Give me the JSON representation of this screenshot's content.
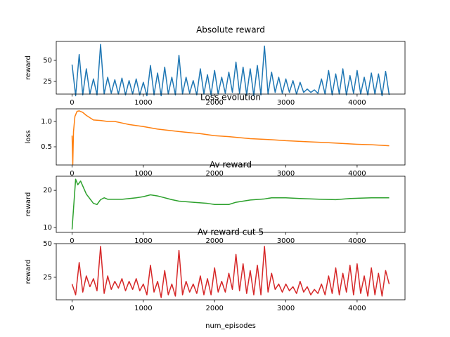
{
  "chart_data": [
    {
      "type": "line",
      "title": "Absolute reward",
      "ylabel": "reward",
      "color": "#1f77b4",
      "x": [
        0,
        50,
        100,
        150,
        200,
        250,
        300,
        350,
        400,
        450,
        500,
        550,
        600,
        650,
        700,
        750,
        800,
        850,
        900,
        950,
        1000,
        1050,
        1100,
        1150,
        1200,
        1250,
        1300,
        1350,
        1400,
        1450,
        1500,
        1550,
        1600,
        1650,
        1700,
        1750,
        1800,
        1850,
        1900,
        1950,
        2000,
        2050,
        2100,
        2150,
        2200,
        2250,
        2300,
        2350,
        2400,
        2450,
        2500,
        2550,
        2600,
        2650,
        2700,
        2750,
        2800,
        2850,
        2900,
        2950,
        3000,
        3050,
        3100,
        3150,
        3200,
        3250,
        3300,
        3350,
        3400,
        3450,
        3500,
        3550,
        3600,
        3650,
        3700,
        3750,
        3800,
        3850,
        3900,
        3950,
        4000,
        4050,
        4100,
        4150,
        4200,
        4250,
        4300,
        4350,
        4400,
        4450
      ],
      "values": [
        45,
        8,
        57,
        9,
        40,
        10,
        28,
        9,
        69,
        10,
        30,
        11,
        27,
        10,
        29,
        9,
        26,
        10,
        28,
        9,
        24,
        8,
        44,
        9,
        35,
        8,
        42,
        10,
        30,
        9,
        56,
        10,
        30,
        11,
        26,
        9,
        40,
        10,
        33,
        9,
        38,
        10,
        30,
        11,
        36,
        12,
        48,
        11,
        42,
        9,
        40,
        8,
        44,
        9,
        67,
        10,
        36,
        12,
        30,
        11,
        28,
        12,
        26,
        10,
        24,
        12,
        16,
        12,
        15,
        11,
        28,
        10,
        38,
        9,
        34,
        10,
        40,
        9,
        32,
        11,
        38,
        10,
        30,
        9,
        35,
        10,
        34,
        8,
        37,
        9
      ],
      "xlim": [
        -222,
        4672
      ],
      "ylim": [
        10,
        72.5
      ],
      "xticks": [
        0,
        1000,
        2000,
        3000,
        4000
      ],
      "yticks": [
        25,
        50
      ]
    },
    {
      "type": "line",
      "title": "Loss evolution",
      "ylabel": "loss",
      "color": "#ff7f0e",
      "x": [
        0,
        10,
        20,
        40,
        70,
        100,
        150,
        200,
        300,
        400,
        500,
        600,
        700,
        800,
        1000,
        1200,
        1500,
        1800,
        2000,
        2200,
        2500,
        2800,
        3000,
        3300,
        3600,
        4000,
        4200,
        4450
      ],
      "values": [
        0.72,
        0.15,
        0.8,
        1.1,
        1.2,
        1.21,
        1.18,
        1.12,
        1.03,
        1.02,
        1.0,
        1.0,
        0.97,
        0.94,
        0.9,
        0.85,
        0.8,
        0.76,
        0.72,
        0.7,
        0.66,
        0.64,
        0.62,
        0.6,
        0.58,
        0.55,
        0.54,
        0.52
      ],
      "xlim": [
        -222,
        4672
      ],
      "ylim": [
        0.14,
        1.25
      ],
      "xticks": [
        0,
        1000,
        2000,
        3000,
        4000
      ],
      "yticks": [
        0.5,
        {
          "value": 1,
          "label": "1.0"
        }
      ]
    },
    {
      "type": "line",
      "title": "Av reward",
      "ylabel": "reward",
      "color": "#2ca02c",
      "x": [
        0,
        20,
        50,
        80,
        120,
        200,
        300,
        350,
        400,
        450,
        500,
        700,
        900,
        1000,
        1100,
        1200,
        1400,
        1500,
        1700,
        1900,
        2000,
        2200,
        2300,
        2500,
        2700,
        2800,
        3000,
        3200,
        3500,
        3700,
        3900,
        4200,
        4450
      ],
      "values": [
        9.5,
        15,
        23,
        21.5,
        22.5,
        19,
        16.5,
        16.2,
        17.5,
        18,
        17.6,
        17.6,
        18,
        18.3,
        18.8,
        18.5,
        17.5,
        17.1,
        16.8,
        16.5,
        16.2,
        16.2,
        16.8,
        17.4,
        17.7,
        18,
        18,
        17.8,
        17.6,
        17.5,
        17.8,
        18,
        18
      ],
      "xlim": [
        -222,
        4672
      ],
      "ylim": [
        8.7,
        23.8
      ],
      "xticks": [
        0,
        1000,
        2000,
        3000,
        4000
      ],
      "yticks": [
        10,
        20
      ]
    },
    {
      "type": "line",
      "title": "Av reward cut 5",
      "ylabel": "reward",
      "xlabel": "num_episodes",
      "color": "#d62728",
      "x": [
        0,
        50,
        100,
        150,
        200,
        250,
        300,
        350,
        400,
        450,
        500,
        550,
        600,
        650,
        700,
        750,
        800,
        850,
        900,
        950,
        1000,
        1050,
        1100,
        1150,
        1200,
        1250,
        1300,
        1350,
        1400,
        1450,
        1500,
        1550,
        1600,
        1650,
        1700,
        1750,
        1800,
        1850,
        1900,
        1950,
        2000,
        2050,
        2100,
        2150,
        2200,
        2250,
        2300,
        2350,
        2400,
        2450,
        2500,
        2550,
        2600,
        2650,
        2700,
        2750,
        2800,
        2850,
        2900,
        2950,
        3000,
        3050,
        3100,
        3150,
        3200,
        3250,
        3300,
        3350,
        3400,
        3450,
        3500,
        3550,
        3600,
        3650,
        3700,
        3750,
        3800,
        3850,
        3900,
        3950,
        4000,
        4050,
        4100,
        4150,
        4200,
        4250,
        4300,
        4350,
        4400,
        4450
      ],
      "values": [
        20,
        12,
        36,
        14,
        26,
        18,
        24,
        15,
        48,
        13,
        26,
        16,
        22,
        17,
        24,
        15,
        22,
        16,
        24,
        15,
        20,
        12,
        34,
        14,
        22,
        10,
        30,
        12,
        20,
        11,
        45,
        12,
        22,
        14,
        20,
        13,
        26,
        12,
        24,
        12,
        32,
        14,
        22,
        14,
        28,
        16,
        42,
        15,
        35,
        13,
        30,
        12,
        34,
        12,
        48,
        14,
        28,
        16,
        20,
        14,
        20,
        15,
        18,
        13,
        22,
        14,
        18,
        12,
        16,
        13,
        20,
        12,
        26,
        13,
        32,
        12,
        28,
        14,
        34,
        12,
        35,
        13,
        26,
        11,
        32,
        12,
        28,
        11,
        30,
        20
      ],
      "xlim": [
        -222,
        4672
      ],
      "ylim": [
        8.3,
        50
      ],
      "xticks": [
        0,
        1000,
        2000,
        3000,
        4000
      ],
      "yticks": [
        25,
        50
      ]
    }
  ]
}
